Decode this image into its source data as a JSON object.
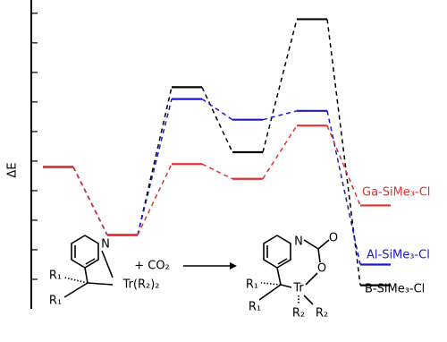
{
  "chart_data": {
    "type": "energy-profile",
    "ylabel": "ΔE",
    "categories": [
      null,
      null,
      null,
      null,
      null,
      null
    ],
    "ylim": [
      0,
      10.45
    ],
    "yticks": [
      1,
      2,
      3,
      4,
      5,
      6,
      7,
      8,
      9,
      10
    ],
    "series": [
      {
        "name": "B-SiMe₃-Cl",
        "color": "#000000",
        "values": [
          4.8,
          2.5,
          7.5,
          5.3,
          9.8,
          0.8
        ]
      },
      {
        "name": "Al-SiMe₃-Cl",
        "color": "#1a1acc",
        "values": [
          4.8,
          2.5,
          7.1,
          6.4,
          6.7,
          1.5
        ]
      },
      {
        "name": "Ga-SiMe₃-Cl",
        "color": "#e03030",
        "values": [
          4.8,
          2.5,
          4.9,
          4.4,
          6.2,
          3.5
        ]
      }
    ],
    "annotations": [
      "N",
      "+ CO₂",
      "Tr(R₂)₂",
      "R₁",
      "R₁",
      "N",
      "O",
      "O",
      "R₁",
      "R₁",
      "Tr",
      "R₂",
      "R₂"
    ]
  }
}
